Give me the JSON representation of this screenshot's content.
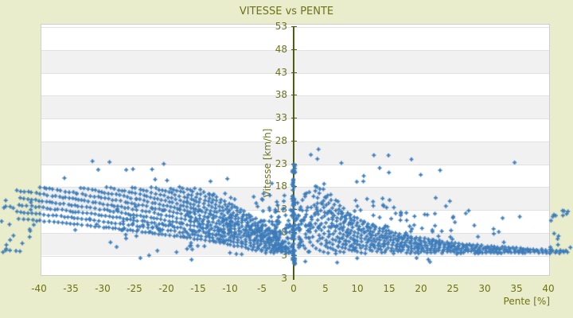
{
  "chart_data": {
    "type": "scatter",
    "title": "VITESSE vs PENTE",
    "xlabel": "Pente [%]",
    "ylabel": "Vitesse [km/h]",
    "x_ticks": [
      -40,
      -35,
      -30,
      -25,
      -20,
      -15,
      -10,
      -5,
      0,
      5,
      10,
      15,
      20,
      25,
      30,
      35,
      40
    ],
    "y_ticks": [
      3,
      8,
      13,
      18,
      23,
      28,
      33,
      38,
      43,
      48,
      53
    ],
    "y_axis_bottom_label": "3",
    "xlim": [
      -40,
      40
    ],
    "ylim": [
      3,
      53
    ],
    "grid": "horizontal-bands-alternating",
    "legend": "none",
    "marker": "plus",
    "colors": {
      "background": "#E9EDCB",
      "plot_background": "#FFFFFF",
      "band": "#F1F1F1",
      "gridline": "#E2E2E2",
      "plot_border": "#CFCFCF",
      "axis_line": "#505C0E",
      "text": "#6D7219",
      "points": "#3C7BB8"
    },
    "series": [
      {
        "name": "vitesse-vs-pente-points",
        "note": "approx. 1200 GPS samples: descent arcs v=a*sqrt(-p) for p<0, climb arcs v=c/p^0.72 for p>0, diffuse cloud, dense column at p=0, spill-over points beyond x-range",
        "seed": 20,
        "generator_components": [
          {
            "name": "descent-arcs",
            "kind": "arcs",
            "side": -1,
            "func": "sqrt",
            "c_start": 1.65,
            "c_step": 0.235,
            "c_count": 13,
            "p_start": 0.7,
            "p_end": 43.5,
            "p_step": 0.6,
            "v_min": 3.3,
            "v_max": 17.9,
            "jitter": 0.13
          },
          {
            "name": "climb-arcs",
            "kind": "arcs",
            "side": 1,
            "func": "invpow",
            "expo": 0.72,
            "c_start": 7,
            "c_step": 4.2,
            "c_count": 13,
            "p_start": 0.7,
            "p_end": 43.0,
            "p_step": 0.6,
            "v_min": 3.3,
            "v_max": 17.9,
            "jitter": 0.13
          },
          {
            "name": "diffuse-cloud",
            "kind": "cloud",
            "n": 360,
            "p_spread": 43,
            "v_base": 3.4,
            "v_span": 13.8,
            "skew": 1.25
          },
          {
            "name": "near-axis-fill",
            "kind": "band",
            "n": 40,
            "p_min": -3,
            "p_max": 3,
            "v_min": 3.5,
            "v_max": 16,
            "bias": 1.2
          },
          {
            "name": "high-speed-sparse",
            "kind": "band",
            "n": 20,
            "p_min": -32,
            "p_max": 20,
            "v_min": 17.9,
            "v_max": 25.3,
            "bias": 2.2
          },
          {
            "name": "zero-slope-column",
            "kind": "column",
            "n": 80,
            "p_jitter": 0.25,
            "v_min": 1.0,
            "v_max": 23.3,
            "bias": 1.5
          },
          {
            "name": "left-outside-box",
            "kind": "band",
            "n": 27,
            "p_min": -46.6,
            "p_max": -40.3,
            "v_min": 3.5,
            "v_max": 15.5,
            "bias": 1.3
          },
          {
            "name": "right-outside-box",
            "kind": "band",
            "n": 19,
            "p_min": 40.3,
            "p_max": 44.3,
            "v_min": 3.6,
            "v_max": 14.5,
            "bias": 1.2
          },
          {
            "name": "very-low-speed",
            "kind": "band",
            "n": 13,
            "p_min": -26,
            "p_max": 26,
            "v_min": 0.9,
            "v_max": 3.3,
            "bias": 1
          }
        ],
        "featured_points": [
          [
            -31.6,
            23.5
          ],
          [
            -20.4,
            22.9
          ],
          [
            -26.3,
            21.6
          ],
          [
            -36.0,
            19.8
          ],
          [
            2.7,
            24.9
          ],
          [
            3.9,
            26.1
          ],
          [
            7.5,
            23.1
          ],
          [
            12.6,
            24.8
          ],
          [
            18.5,
            23.9
          ],
          [
            23.0,
            21.5
          ],
          [
            34.7,
            23.2
          ]
        ]
      }
    ]
  }
}
